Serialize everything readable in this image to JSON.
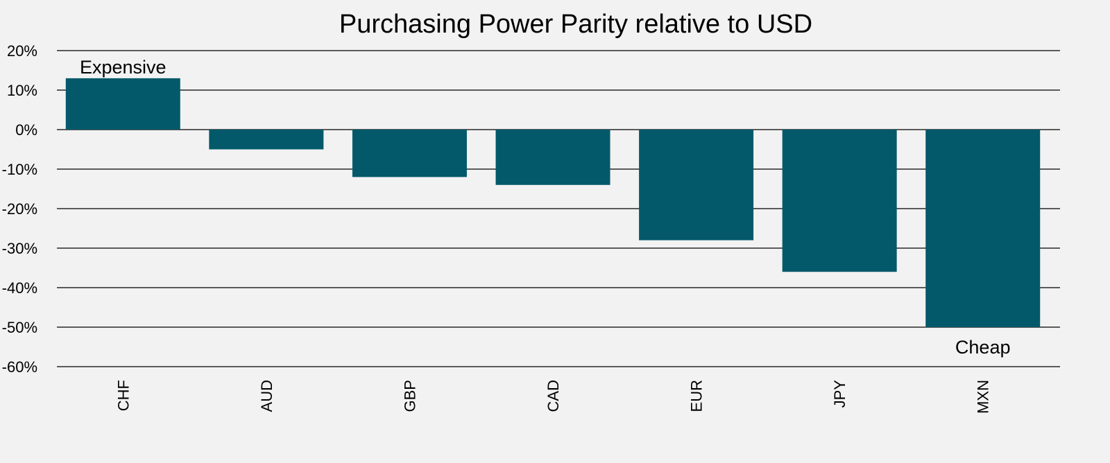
{
  "chart_data": {
    "type": "bar",
    "title": "Purchasing Power Parity relative to USD",
    "xlabel": "",
    "ylabel": "",
    "categories": [
      "CHF",
      "AUD",
      "GBP",
      "CAD",
      "EUR",
      "JPY",
      "MXN"
    ],
    "values": [
      13,
      -5,
      -12,
      -14,
      -28,
      -36,
      -50
    ],
    "ylim": [
      -60,
      20
    ],
    "yticks": [
      20,
      10,
      0,
      -10,
      -20,
      -30,
      -40,
      -50,
      -60
    ],
    "ytick_labels": [
      "20%",
      "10%",
      "0%",
      "-10%",
      "-20%",
      "-30%",
      "-40%",
      "-50%",
      "-60%"
    ],
    "grid": true,
    "bar_color": "#03596a",
    "annotations": [
      {
        "text": "Expensive",
        "category": "CHF",
        "anchor": "above-bar"
      },
      {
        "text": "Cheap",
        "category": "MXN",
        "anchor": "below-bar"
      }
    ]
  }
}
